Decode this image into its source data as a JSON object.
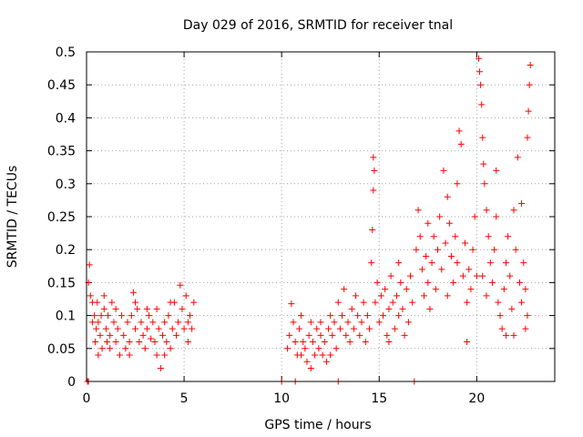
{
  "chart_data": {
    "type": "scatter",
    "title": "Day 029 of 2016, SRMTID for receiver tnal",
    "xlabel": "GPS time / hours",
    "ylabel": "SRMTID / TECUs",
    "xlim": [
      0,
      24
    ],
    "ylim": [
      0,
      0.5
    ],
    "xticks": [
      0,
      5,
      10,
      15,
      20
    ],
    "xtick_labels": [
      "0",
      "5",
      "10",
      "15",
      "20"
    ],
    "yticks": [
      0,
      0.05,
      0.1,
      0.15,
      0.2,
      0.25,
      0.3,
      0.35,
      0.4,
      0.45,
      0.5
    ],
    "ytick_labels": [
      "0",
      "0.05",
      "0.1",
      "0.15",
      "0.2",
      "0.25",
      "0.3",
      "0.35",
      "0.4",
      "0.45",
      "0.5"
    ],
    "grid": true,
    "marker": "+",
    "color": "#ff0000",
    "series": [
      {
        "name": "SRMTID",
        "points": [
          [
            0.05,
            0
          ],
          [
            0.1,
            0
          ],
          [
            0.15,
            0.177
          ],
          [
            0.1,
            0.15
          ],
          [
            0.2,
            0.13
          ],
          [
            0.3,
            0.09
          ],
          [
            0.4,
            0.1
          ],
          [
            0.45,
            0.06
          ],
          [
            0.5,
            0.08
          ],
          [
            0.55,
            0.12
          ],
          [
            0.6,
            0.04
          ],
          [
            0.7,
            0.07
          ],
          [
            0.75,
            0.1
          ],
          [
            0.8,
            0.05
          ],
          [
            0.9,
            0.11
          ],
          [
            1.0,
            0.08
          ],
          [
            1.05,
            0.06
          ],
          [
            1.1,
            0.1
          ],
          [
            1.2,
            0.07
          ],
          [
            1.3,
            0.12
          ],
          [
            1.4,
            0.09
          ],
          [
            1.5,
            0.06
          ],
          [
            1.6,
            0.08
          ],
          [
            1.7,
            0.04
          ],
          [
            1.8,
            0.1
          ],
          [
            1.9,
            0.07
          ],
          [
            2.0,
            0.05
          ],
          [
            2.1,
            0.09
          ],
          [
            2.2,
            0.06
          ],
          [
            2.3,
            0.1
          ],
          [
            2.4,
            0.135
          ],
          [
            2.5,
            0.08
          ],
          [
            2.6,
            0.11
          ],
          [
            2.7,
            0.06
          ],
          [
            2.8,
            0.09
          ],
          [
            2.9,
            0.07
          ],
          [
            3.0,
            0.05
          ],
          [
            3.1,
            0.08
          ],
          [
            3.2,
            0.1
          ],
          [
            3.3,
            0.065
          ],
          [
            3.4,
            0.09
          ],
          [
            3.5,
            0.06
          ],
          [
            3.6,
            0.04
          ],
          [
            3.7,
            0.08
          ],
          [
            3.8,
            0.02
          ],
          [
            3.9,
            0.07
          ],
          [
            4.0,
            0.09
          ],
          [
            4.1,
            0.06
          ],
          [
            4.2,
            0.1
          ],
          [
            4.3,
            0.05
          ],
          [
            4.4,
            0.08
          ],
          [
            4.5,
            0.12
          ],
          [
            4.6,
            0.07
          ],
          [
            4.7,
            0.09
          ],
          [
            4.8,
            0.146
          ],
          [
            4.9,
            0.11
          ],
          [
            5.0,
            0.08
          ],
          [
            5.1,
            0.13
          ],
          [
            5.2,
            0.06
          ],
          [
            5.3,
            0.1
          ],
          [
            5.4,
            0.08
          ],
          [
            5.5,
            0.12
          ],
          [
            0.3,
            0.12
          ],
          [
            0.9,
            0.13
          ],
          [
            1.5,
            0.11
          ],
          [
            2.5,
            0.12
          ],
          [
            3.1,
            0.11
          ],
          [
            4.3,
            0.12
          ],
          [
            0.6,
            0.09
          ],
          [
            1.2,
            0.05
          ],
          [
            2.2,
            0.04
          ],
          [
            3.6,
            0.11
          ],
          [
            4.0,
            0.04
          ],
          [
            5.2,
            0.09
          ],
          [
            10.0,
            0
          ],
          [
            10.3,
            0.05
          ],
          [
            10.4,
            0.07
          ],
          [
            10.5,
            0.118
          ],
          [
            10.6,
            0.09
          ],
          [
            10.7,
            0.06
          ],
          [
            10.8,
            0.04
          ],
          [
            10.9,
            0.08
          ],
          [
            11.0,
            0.1
          ],
          [
            11.1,
            0.06
          ],
          [
            11.2,
            0.05
          ],
          [
            11.3,
            0.03
          ],
          [
            11.4,
            0.07
          ],
          [
            11.5,
            0.09
          ],
          [
            11.6,
            0.06
          ],
          [
            11.7,
            0.04
          ],
          [
            11.8,
            0.08
          ],
          [
            11.9,
            0.05
          ],
          [
            12.0,
            0.07
          ],
          [
            12.1,
            0.04
          ],
          [
            12.2,
            0.06
          ],
          [
            12.3,
            0.03
          ],
          [
            12.4,
            0.08
          ],
          [
            12.5,
            0.1
          ],
          [
            12.6,
            0.07
          ],
          [
            12.7,
            0.09
          ],
          [
            12.8,
            0.05
          ],
          [
            12.9,
            0.12
          ],
          [
            13.0,
            0.08
          ],
          [
            13.1,
            0.1
          ],
          [
            13.2,
            0.14
          ],
          [
            13.3,
            0.07
          ],
          [
            13.4,
            0.09
          ],
          [
            13.5,
            0.06
          ],
          [
            13.6,
            0.11
          ],
          [
            13.7,
            0.08
          ],
          [
            13.8,
            0.13
          ],
          [
            13.9,
            0.1
          ],
          [
            14.0,
            0.07
          ],
          [
            14.1,
            0.09
          ],
          [
            14.2,
            0.12
          ],
          [
            14.3,
            0.06
          ],
          [
            14.4,
            0.1
          ],
          [
            14.5,
            0.08
          ],
          [
            11.0,
            0.04
          ],
          [
            11.5,
            0.02
          ],
          [
            12.0,
            0.09
          ],
          [
            12.5,
            0.04
          ],
          [
            10.7,
            0
          ],
          [
            12.9,
            0
          ],
          [
            14.6,
            0.18
          ],
          [
            14.65,
            0.23
          ],
          [
            14.7,
            0.34
          ],
          [
            14.7,
            0.29
          ],
          [
            14.75,
            0.32
          ],
          [
            14.8,
            0.12
          ],
          [
            14.9,
            0.15
          ],
          [
            15.0,
            0.09
          ],
          [
            15.1,
            0.13
          ],
          [
            15.2,
            0.1
          ],
          [
            15.3,
            0.14
          ],
          [
            15.4,
            0.07
          ],
          [
            15.5,
            0.11
          ],
          [
            15.6,
            0.16
          ],
          [
            15.7,
            0.12
          ],
          [
            15.8,
            0.08
          ],
          [
            15.9,
            0.13
          ],
          [
            16.0,
            0.1
          ],
          [
            16.1,
            0.15
          ],
          [
            16.2,
            0.11
          ],
          [
            16.3,
            0.07
          ],
          [
            16.4,
            0.14
          ],
          [
            16.5,
            0.09
          ],
          [
            16.6,
            0.16
          ],
          [
            16.7,
            0.12
          ],
          [
            16.8,
            0
          ],
          [
            16.9,
            0.2
          ],
          [
            17.0,
            0.26
          ],
          [
            17.1,
            0.22
          ],
          [
            17.2,
            0.17
          ],
          [
            17.3,
            0.13
          ],
          [
            17.4,
            0.19
          ],
          [
            17.5,
            0.15
          ],
          [
            17.6,
            0.11
          ],
          [
            17.7,
            0.18
          ],
          [
            17.8,
            0.22
          ],
          [
            17.9,
            0.14
          ],
          [
            18.0,
            0.2
          ],
          [
            18.1,
            0.25
          ],
          [
            18.2,
            0.17
          ],
          [
            18.3,
            0.32
          ],
          [
            18.4,
            0.21
          ],
          [
            18.5,
            0.28
          ],
          [
            18.6,
            0.24
          ],
          [
            18.7,
            0.19
          ],
          [
            18.8,
            0.15
          ],
          [
            18.9,
            0.22
          ],
          [
            19.0,
            0.18
          ],
          [
            19.1,
            0.38
          ],
          [
            19.2,
            0.36
          ],
          [
            19.3,
            0.16
          ],
          [
            19.4,
            0.21
          ],
          [
            19.5,
            0.12
          ],
          [
            19.6,
            0.17
          ],
          [
            19.7,
            0.14
          ],
          [
            19.8,
            0.2
          ],
          [
            19.9,
            0.25
          ],
          [
            20.0,
            0.16
          ],
          [
            20.1,
            0.49
          ],
          [
            20.15,
            0.47
          ],
          [
            20.2,
            0.45
          ],
          [
            20.25,
            0.42
          ],
          [
            20.3,
            0.37
          ],
          [
            20.35,
            0.33
          ],
          [
            20.4,
            0.3
          ],
          [
            20.5,
            0.26
          ],
          [
            20.6,
            0.22
          ],
          [
            20.7,
            0.18
          ],
          [
            20.8,
            0.15
          ],
          [
            20.9,
            0.2
          ],
          [
            21.0,
            0.25
          ],
          [
            21.1,
            0.12
          ],
          [
            21.2,
            0.1
          ],
          [
            21.3,
            0.08
          ],
          [
            21.4,
            0.14
          ],
          [
            21.5,
            0.18
          ],
          [
            21.6,
            0.22
          ],
          [
            21.7,
            0.16
          ],
          [
            21.8,
            0.11
          ],
          [
            21.9,
            0.26
          ],
          [
            22.0,
            0.2
          ],
          [
            22.1,
            0.34
          ],
          [
            22.2,
            0.15
          ],
          [
            22.3,
            0.12
          ],
          [
            22.4,
            0.18
          ],
          [
            22.5,
            0.08
          ],
          [
            22.6,
            0.37
          ],
          [
            22.65,
            0.41
          ],
          [
            22.7,
            0.45
          ],
          [
            22.75,
            0.48
          ],
          [
            22.6,
            0.1
          ],
          [
            22.5,
            0.14
          ],
          [
            19.5,
            0.06
          ],
          [
            20.5,
            0.13
          ],
          [
            21.5,
            0.07
          ],
          [
            15.5,
            0.06
          ],
          [
            16.0,
            0.18
          ],
          [
            17.5,
            0.24
          ],
          [
            18.5,
            0.13
          ],
          [
            19.0,
            0.3
          ],
          [
            20.3,
            0.16
          ],
          [
            21.0,
            0.32
          ],
          [
            21.9,
            0.07
          ],
          [
            22.3,
            0.27
          ]
        ]
      }
    ]
  }
}
